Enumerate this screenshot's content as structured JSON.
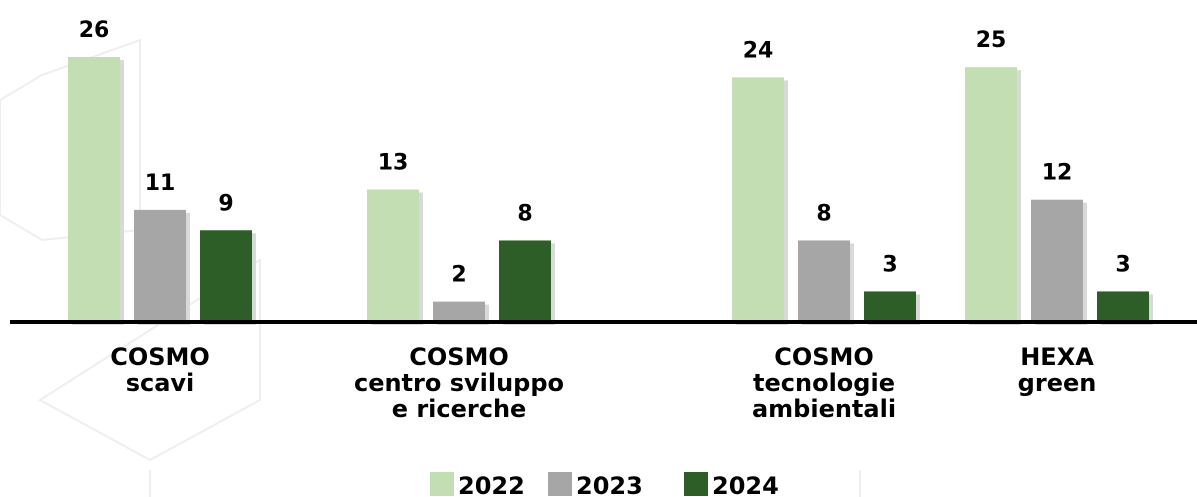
{
  "chart_data": {
    "type": "bar",
    "categories": [
      "COSMO\nscavi",
      "COSMO\ncentro sviluppo\ne ricerche",
      "COSMO\ntecnologie\nambientali",
      "HEXA\ngreen"
    ],
    "series": [
      {
        "name": "2022",
        "color": "#c3deb3",
        "values": [
          26,
          13,
          24,
          25
        ]
      },
      {
        "name": "2023",
        "color": "#a6a6a6",
        "values": [
          11,
          2,
          8,
          12
        ]
      },
      {
        "name": "2024",
        "color": "#2d5e27",
        "values": [
          9,
          8,
          3,
          3
        ]
      }
    ],
    "ylim": [
      0,
      26
    ],
    "legend": "bottom"
  }
}
